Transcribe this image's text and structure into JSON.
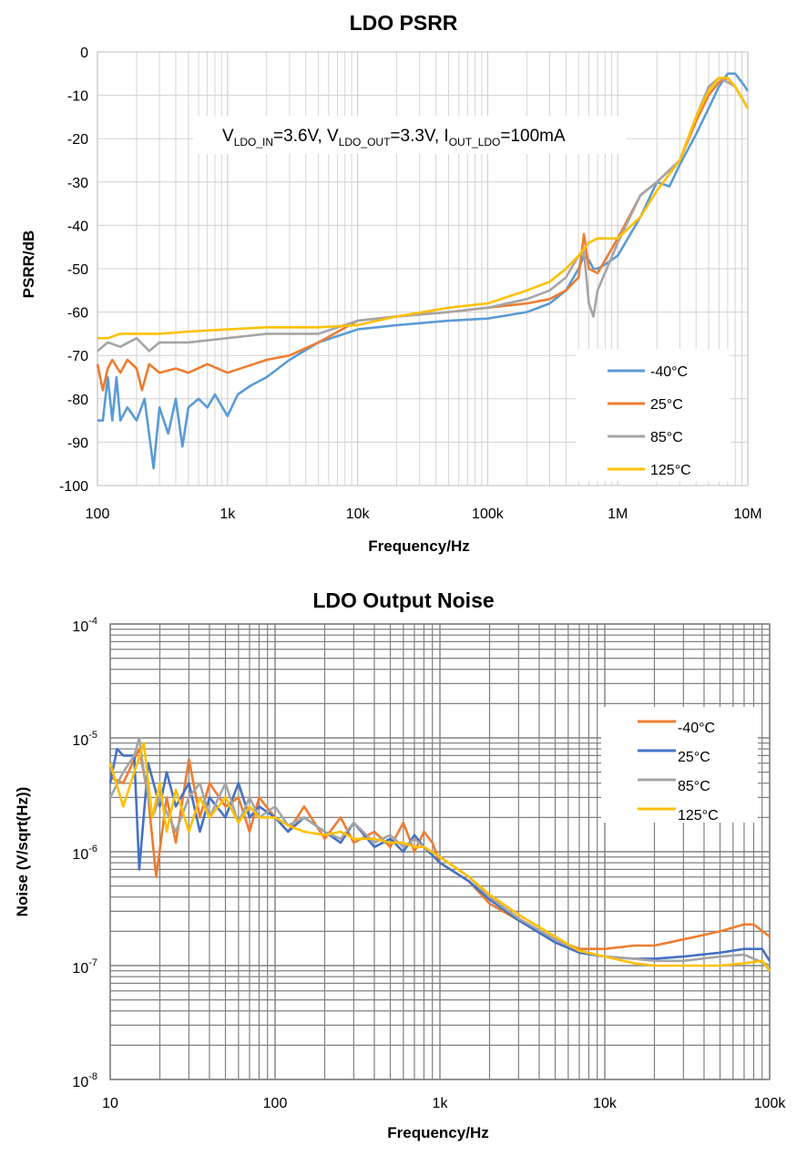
{
  "chart_data": [
    {
      "type": "line",
      "title": "LDO PSRR",
      "xlabel": "Frequency/Hz",
      "ylabel": "PSRR/dB",
      "xscale": "log",
      "xlim": [
        100,
        10000000
      ],
      "ylim": [
        -100,
        0
      ],
      "x_ticks": [
        100,
        1000,
        10000,
        100000,
        1000000,
        10000000
      ],
      "x_tick_labels": [
        "100",
        "1k",
        "10k",
        "100k",
        "1M",
        "10M"
      ],
      "y_ticks": [
        0,
        -10,
        -20,
        -30,
        -40,
        -50,
        -60,
        -70,
        -80,
        -90,
        -100
      ],
      "y_tick_labels": [
        "0",
        "-10",
        "-20",
        "-30",
        "-40",
        "-50",
        "-60",
        "-70",
        "-80",
        "-90",
        "-100"
      ],
      "annotation": {
        "p1": "V",
        "s1": "LDO_IN",
        "p2": "=3.6V, V",
        "s2": "LDO_OUT",
        "p3": "=3.3V, I",
        "s3": "OUT_LDO",
        "p4": "=100mA"
      },
      "legend_position": "bottom-right",
      "series": [
        {
          "name": "-40°C",
          "color": "#5b9bd5",
          "x": [
            100,
            110,
            120,
            130,
            140,
            150,
            170,
            200,
            230,
            270,
            300,
            350,
            400,
            450,
            500,
            600,
            700,
            800,
            1000,
            1200,
            1500,
            2000,
            3000,
            5000,
            10000,
            20000,
            50000,
            100000,
            200000,
            300000,
            400000,
            500000,
            550000,
            600000,
            650000,
            700000,
            800000,
            1000000,
            1500000,
            2000000,
            2500000,
            3000000,
            4000000,
            5000000,
            6000000,
            7000000,
            8000000,
            9000000,
            10000000
          ],
          "y": [
            -85,
            -85,
            -75,
            -85,
            -75,
            -85,
            -82,
            -85,
            -80,
            -96,
            -82,
            -88,
            -80,
            -91,
            -82,
            -80,
            -82,
            -79,
            -84,
            -79,
            -77,
            -75,
            -71,
            -67,
            -64,
            -63,
            -62,
            -61.5,
            -60,
            -58,
            -55,
            -50,
            -47,
            -48,
            -50,
            -50,
            -49,
            -47,
            -38,
            -30,
            -31,
            -26,
            -19,
            -13,
            -8,
            -5,
            -5,
            -7,
            -9
          ]
        },
        {
          "name": "25°C",
          "color": "#ed7d31",
          "x": [
            100,
            110,
            120,
            130,
            150,
            170,
            200,
            220,
            250,
            300,
            400,
            500,
            700,
            1000,
            2000,
            3000,
            5000,
            10000,
            20000,
            50000,
            100000,
            200000,
            300000,
            400000,
            500000,
            550000,
            600000,
            700000,
            1000000,
            1500000,
            2000000,
            3000000,
            4000000,
            5000000,
            6000000,
            7000000,
            8000000,
            10000000
          ],
          "y": [
            -72,
            -78,
            -73,
            -71,
            -74,
            -71,
            -73,
            -78,
            -72,
            -74,
            -73,
            -74,
            -72,
            -74,
            -71,
            -70,
            -67,
            -62,
            -61,
            -60,
            -59,
            -58,
            -57,
            -55,
            -52,
            -42,
            -50,
            -51,
            -43,
            -33,
            -30,
            -25,
            -16,
            -10,
            -7,
            -6,
            -8,
            -13
          ]
        },
        {
          "name": "85°C",
          "color": "#a5a5a5",
          "x": [
            100,
            120,
            150,
            200,
            250,
            300,
            500,
            1000,
            2000,
            5000,
            10000,
            20000,
            50000,
            100000,
            200000,
            300000,
            400000,
            500000,
            550000,
            600000,
            650000,
            700000,
            1000000,
            1500000,
            2000000,
            3000000,
            4000000,
            5000000,
            6000000,
            7000000,
            8000000,
            10000000
          ],
          "y": [
            -69,
            -67,
            -68,
            -66,
            -69,
            -67,
            -67,
            -66,
            -65,
            -65,
            -62,
            -61,
            -60,
            -59,
            -57,
            -55,
            -52,
            -47,
            -46,
            -58,
            -61,
            -55,
            -44,
            -33,
            -30,
            -25,
            -15,
            -8,
            -6,
            -7,
            -8,
            -13
          ]
        },
        {
          "name": "125°C",
          "color": "#ffc000",
          "x": [
            100,
            120,
            150,
            200,
            300,
            500,
            1000,
            2000,
            5000,
            10000,
            20000,
            50000,
            100000,
            200000,
            300000,
            400000,
            500000,
            600000,
            700000,
            1000000,
            1500000,
            2000000,
            3000000,
            4000000,
            5000000,
            6000000,
            7000000,
            8000000,
            10000000
          ],
          "y": [
            -66,
            -66,
            -65,
            -65,
            -65,
            -64.5,
            -64,
            -63.5,
            -63.5,
            -63,
            -61,
            -59,
            -58,
            -55,
            -53,
            -50,
            -47,
            -44,
            -43,
            -43,
            -38,
            -32,
            -25,
            -15,
            -9,
            -6,
            -6,
            -8,
            -13
          ]
        }
      ]
    },
    {
      "type": "line",
      "title": "LDO Output Noise",
      "xlabel": "Frequency/Hz",
      "ylabel": "Noise (V/sqrt(Hz))",
      "xscale": "log",
      "yscale": "log",
      "xlim": [
        10,
        100000
      ],
      "ylim": [
        1e-08,
        0.0001
      ],
      "x_ticks": [
        10,
        100,
        1000,
        10000,
        100000
      ],
      "x_tick_labels": [
        "10",
        "100",
        "1k",
        "10k",
        "100k"
      ],
      "y_ticks": [
        0.0001,
        1e-05,
        1e-06,
        1e-07,
        1e-08
      ],
      "y_tick_labels": [
        {
          "base": "10",
          "exp": "-4"
        },
        {
          "base": "10",
          "exp": "-5"
        },
        {
          "base": "10",
          "exp": "-6"
        },
        {
          "base": "10",
          "exp": "-7"
        },
        {
          "base": "10",
          "exp": "-8"
        }
      ],
      "legend_position": "top-right",
      "series": [
        {
          "name": "-40°C",
          "color": "#ed7d31",
          "x": [
            10,
            12,
            15,
            17,
            19,
            22,
            25,
            30,
            35,
            40,
            50,
            60,
            70,
            80,
            100,
            120,
            150,
            200,
            250,
            300,
            400,
            500,
            600,
            700,
            800,
            900,
            1000,
            1500,
            2000,
            3000,
            5000,
            7000,
            10000,
            15000,
            20000,
            30000,
            50000,
            70000,
            80000,
            100000
          ],
          "y": [
            4.5e-06,
            4e-06,
            8e-06,
            3e-06,
            6e-07,
            3e-06,
            1.2e-06,
            6.5e-06,
            2e-06,
            4e-06,
            2.5e-06,
            3e-06,
            1.5e-06,
            3e-06,
            2e-06,
            1.5e-06,
            2.5e-06,
            1.3e-06,
            2e-06,
            1.2e-06,
            1.5e-06,
            1.1e-06,
            1.8e-06,
            1e-06,
            1.5e-06,
            1.2e-06,
            8e-07,
            5.5e-07,
            3.5e-07,
            2.5e-07,
            1.7e-07,
            1.4e-07,
            1.4e-07,
            1.5e-07,
            1.5e-07,
            1.7e-07,
            2e-07,
            2.3e-07,
            2.3e-07,
            1.8e-07
          ]
        },
        {
          "name": "25°C",
          "color": "#4472c4",
          "x": [
            10,
            11,
            12,
            14,
            15,
            17,
            20,
            22,
            25,
            30,
            35,
            40,
            50,
            60,
            70,
            80,
            100,
            120,
            150,
            200,
            250,
            300,
            400,
            500,
            600,
            700,
            800,
            1000,
            1500,
            2000,
            3000,
            5000,
            7000,
            10000,
            15000,
            20000,
            30000,
            50000,
            70000,
            90000,
            100000
          ],
          "y": [
            4e-06,
            8e-06,
            7e-06,
            7e-06,
            7e-07,
            6e-06,
            2.5e-06,
            5e-06,
            2.5e-06,
            4e-06,
            1.5e-06,
            3e-06,
            2e-06,
            4e-06,
            2e-06,
            2.5e-06,
            2e-06,
            1.5e-06,
            2e-06,
            1.5e-06,
            1.2e-06,
            1.8e-06,
            1.1e-06,
            1.3e-06,
            1e-06,
            1.4e-06,
            1.1e-06,
            8e-07,
            5.5e-07,
            3.8e-07,
            2.5e-07,
            1.6e-07,
            1.3e-07,
            1.2e-07,
            1.15e-07,
            1.15e-07,
            1.2e-07,
            1.3e-07,
            1.4e-07,
            1.4e-07,
            1.1e-07
          ]
        },
        {
          "name": "85°C",
          "color": "#a5a5a5",
          "x": [
            10,
            12,
            14,
            15,
            16,
            18,
            20,
            25,
            30,
            35,
            40,
            50,
            60,
            70,
            80,
            100,
            120,
            150,
            200,
            250,
            300,
            400,
            500,
            600,
            700,
            800,
            1000,
            1500,
            2000,
            3000,
            5000,
            7000,
            10000,
            15000,
            20000,
            30000,
            50000,
            70000,
            100000
          ],
          "y": [
            3e-06,
            5e-06,
            7e-06,
            1e-05,
            5e-06,
            2e-06,
            3e-06,
            1.5e-06,
            3e-06,
            4e-06,
            2e-06,
            4e-06,
            1.8e-06,
            3e-06,
            2e-06,
            2.5e-06,
            1.7e-06,
            2e-06,
            1.5e-06,
            1.3e-06,
            1.8e-06,
            1.2e-06,
            1.4e-06,
            1.1e-06,
            1.3e-06,
            1.1e-06,
            9e-07,
            6e-07,
            4e-07,
            2.6e-07,
            1.7e-07,
            1.35e-07,
            1.2e-07,
            1.15e-07,
            1.1e-07,
            1.1e-07,
            1.2e-07,
            1.25e-07,
            1e-07
          ]
        },
        {
          "name": "125°C",
          "color": "#ffc000",
          "x": [
            10,
            12,
            14,
            16,
            18,
            20,
            22,
            25,
            30,
            35,
            40,
            50,
            60,
            70,
            80,
            100,
            120,
            150,
            200,
            250,
            300,
            400,
            500,
            600,
            700,
            800,
            1000,
            1500,
            2000,
            3000,
            5000,
            7000,
            10000,
            15000,
            20000,
            30000,
            50000,
            70000,
            90000,
            100000
          ],
          "y": [
            6e-06,
            2.5e-06,
            5e-06,
            9e-06,
            2e-06,
            4e-06,
            1.5e-06,
            3.5e-06,
            1.5e-06,
            3e-06,
            2e-06,
            3e-06,
            1.8e-06,
            2.5e-06,
            2e-06,
            2e-06,
            1.7e-06,
            1.5e-06,
            1.4e-06,
            1.5e-06,
            1.3e-06,
            1.3e-06,
            1.2e-06,
            1.2e-06,
            1.1e-06,
            1.1e-06,
            9e-07,
            6e-07,
            4.2e-07,
            2.8e-07,
            1.8e-07,
            1.35e-07,
            1.2e-07,
            1.05e-07,
            1e-07,
            1e-07,
            1e-07,
            1.05e-07,
            1.1e-07,
            9e-08
          ]
        }
      ]
    }
  ]
}
